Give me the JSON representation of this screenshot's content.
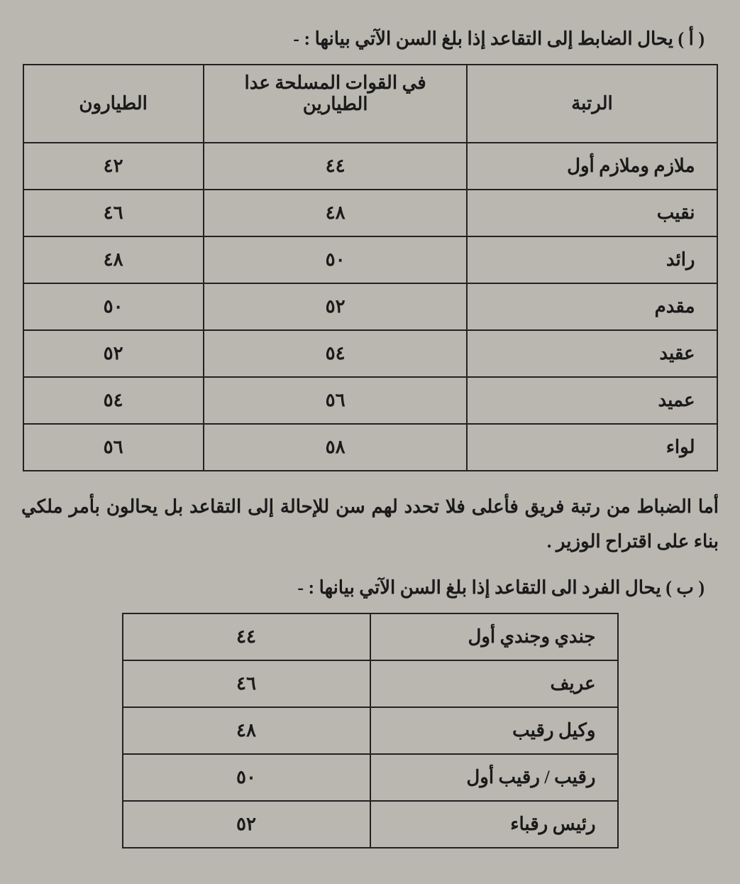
{
  "sectionA": {
    "heading": "( أ ) يحال الضابط إلى التقاعد إذا بلغ السن الآتي بيانها : -",
    "columns": {
      "rank": "الرتبة",
      "forces": "في القوات المسلحة عدا الطيارين",
      "pilots": "الطيارون"
    },
    "rows": [
      {
        "rank": "ملازم وملازم أول",
        "forces": "٤٤",
        "pilots": "٤٢"
      },
      {
        "rank": "نقيب",
        "forces": "٤٨",
        "pilots": "٤٦"
      },
      {
        "rank": "رائد",
        "forces": "٥٠",
        "pilots": "٤٨"
      },
      {
        "rank": "مقدم",
        "forces": "٥٢",
        "pilots": "٥٠"
      },
      {
        "rank": "عقيد",
        "forces": "٥٤",
        "pilots": "٥٢"
      },
      {
        "rank": "عميد",
        "forces": "٥٦",
        "pilots": "٥٤"
      },
      {
        "rank": "لواء",
        "forces": "٥٨",
        "pilots": "٥٦"
      }
    ]
  },
  "paragraph": "أما الضباط من رتبة فريق فأعلى فلا تحدد لهم سن للإحالة  إلى التقاعد بل يحالون بأمر ملكي بناء على اقتراح الوزير .",
  "sectionB": {
    "heading": "( ب ) يحال الفرد الى التقاعد إذا بلغ السن الآتي بيانها : -",
    "rows": [
      {
        "rank": "جندي وجندي أول",
        "age": "٤٤"
      },
      {
        "rank": "عريف",
        "age": "٤٦"
      },
      {
        "rank": "وكيل رقيب",
        "age": "٤٨"
      },
      {
        "rank": "رقيب / رقيب أول",
        "age": "٥٠"
      },
      {
        "rank": "رئيس رقباء",
        "age": "٥٢"
      }
    ]
  },
  "style": {
    "background_color": "#b9b7b0",
    "border_color": "#222222",
    "text_color": "#1a1a1a",
    "font_size_pt": 20,
    "font_weight": "bold"
  }
}
